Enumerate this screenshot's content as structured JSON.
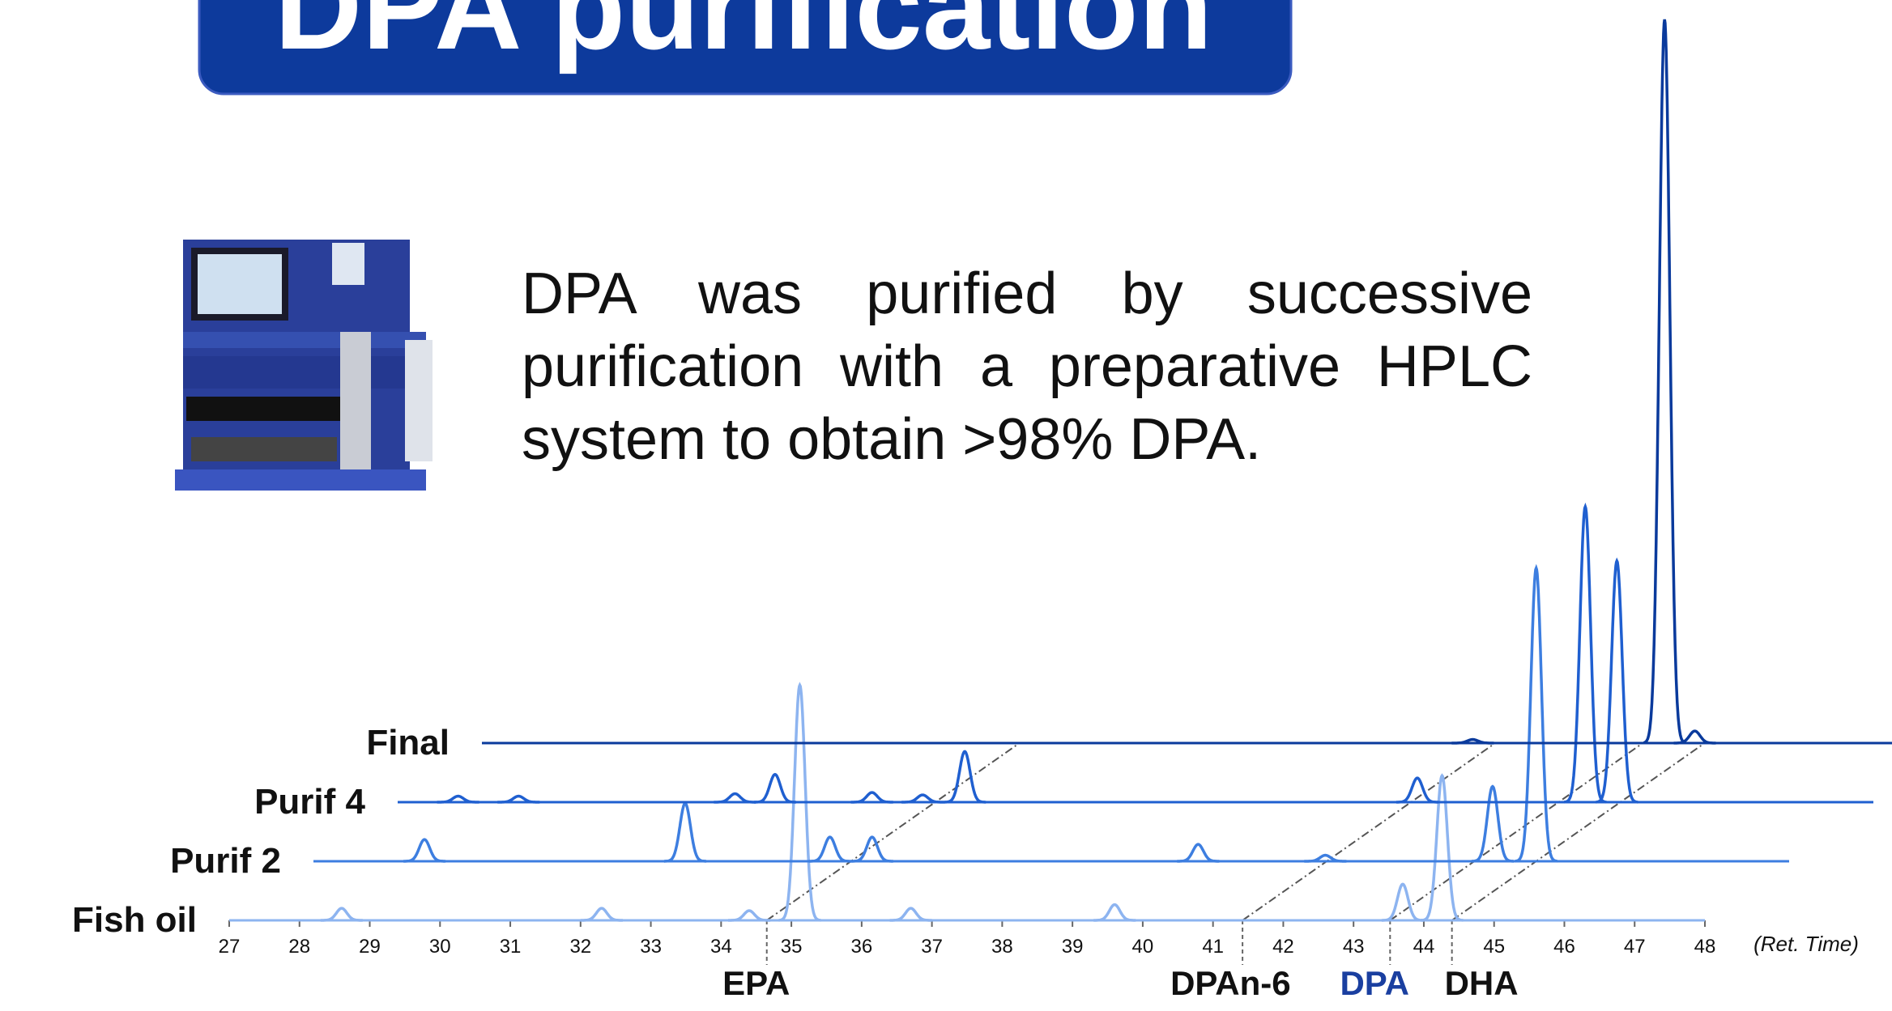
{
  "header": {
    "title": "DPA purification"
  },
  "body": {
    "text": "DPA was purified by successive purification with a preparative HPLC system to obtain >98% DPA."
  },
  "chart_data": {
    "type": "line",
    "x_label": "(Ret. Time)",
    "xlim": [
      27,
      48
    ],
    "xticks": [
      27,
      28,
      29,
      30,
      31,
      32,
      33,
      34,
      35,
      36,
      37,
      38,
      39,
      40,
      41,
      42,
      43,
      44,
      45,
      46,
      47,
      48
    ],
    "series": [
      {
        "name": "Fish oil",
        "color": "#8db4f0",
        "x": [
          28.6,
          32.3,
          34.4,
          35.12,
          36.7,
          39.6,
          43.7,
          44.26
        ],
        "values": [
          10,
          10,
          8,
          195,
          10,
          13,
          30,
          120
        ]
      },
      {
        "name": "Purif 2",
        "color": "#3d7ee0",
        "x": [
          28.58,
          32.29,
          34.35,
          34.95,
          39.59,
          41.4,
          43.78,
          44.4
        ],
        "values": [
          18,
          48,
          20,
          20,
          14,
          5,
          62,
          243
        ]
      },
      {
        "name": "Purif 4",
        "color": "#1f5fd0",
        "x": [
          27.86,
          28.72,
          31.8,
          32.37,
          33.75,
          34.47,
          35.07,
          41.51,
          43.9,
          44.35
        ],
        "values": [
          5,
          5,
          7,
          23,
          8,
          6,
          42,
          20,
          245,
          200
        ]
      },
      {
        "name": "Final",
        "color": "#0a3a9c",
        "x": [
          41.1,
          43.83,
          44.26
        ],
        "values": [
          3,
          600,
          10
        ]
      }
    ],
    "dividers": [
      34.65,
      41.42,
      43.52,
      44.4
    ],
    "annotations": [
      {
        "text": "EPA",
        "x": 34.5,
        "color": "#111111"
      },
      {
        "text": "DPAn-6",
        "x": 41.25,
        "color": "#111111"
      },
      {
        "text": "DPA",
        "x": 43.3,
        "color": "#1a3fa0"
      },
      {
        "text": "DHA",
        "x": 44.82,
        "color": "#111111"
      }
    ]
  }
}
